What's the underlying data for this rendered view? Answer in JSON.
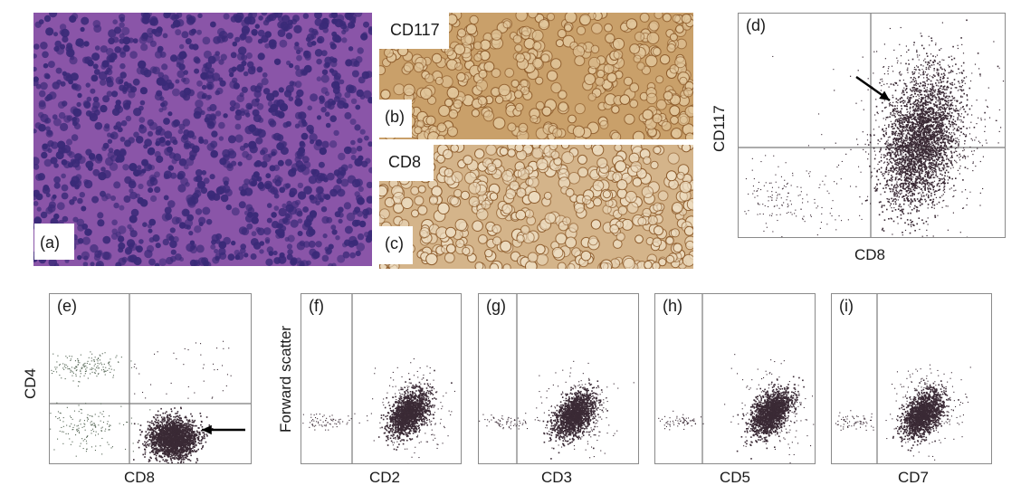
{
  "panels": {
    "a": {
      "label": "(a)"
    },
    "b": {
      "label": "(b)",
      "stain": "CD117"
    },
    "c": {
      "label": "(c)",
      "stain": "CD8"
    },
    "d": {
      "label": "(d)",
      "xlabel": "CD8",
      "ylabel": "CD117"
    },
    "e": {
      "label": "(e)",
      "xlabel": "CD8",
      "ylabel": "CD4"
    },
    "f": {
      "label": "(f)",
      "xlabel": "CD2",
      "ylabel": "Forward scatter"
    },
    "g": {
      "label": "(g)",
      "xlabel": "CD3"
    },
    "h": {
      "label": "(h)",
      "xlabel": "CD5"
    },
    "i": {
      "label": "(i)",
      "xlabel": "CD7"
    }
  },
  "colors": {
    "he_background": "#8a55a8",
    "he_nuclei": "#3a2a78",
    "ihc_background": "#c9a06a",
    "ihc_membrane": "#8c5a2a",
    "dot": "#3a2a35",
    "quadrant_line": "#7a7a7a"
  },
  "icons": [
    "arrow-icon"
  ]
}
